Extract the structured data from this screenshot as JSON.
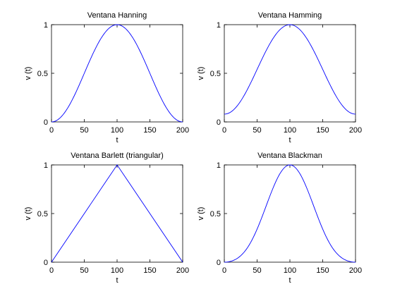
{
  "figure": {
    "background": "#ffffff",
    "line_color": "#0000ff"
  },
  "chart_data": [
    {
      "type": "line",
      "title": "Ventana Hanning",
      "xlabel": "t",
      "ylabel": "v (t)",
      "xlim": [
        0,
        200
      ],
      "ylim": [
        0,
        1
      ],
      "xticks": [
        0,
        50,
        100,
        150,
        200
      ],
      "yticks": [
        0,
        0.5,
        1
      ],
      "xtick_labels": [
        "0",
        "50",
        "100",
        "150",
        "200"
      ],
      "ytick_labels": [
        "0",
        "0.5",
        "1"
      ],
      "grid": false,
      "window": "hanning",
      "x": [
        0,
        10,
        20,
        30,
        40,
        50,
        60,
        70,
        80,
        90,
        100,
        110,
        120,
        130,
        140,
        150,
        160,
        170,
        180,
        190,
        200
      ],
      "y": [
        0,
        0.025,
        0.095,
        0.206,
        0.345,
        0.5,
        0.655,
        0.794,
        0.905,
        0.975,
        1,
        0.975,
        0.905,
        0.794,
        0.655,
        0.5,
        0.345,
        0.206,
        0.095,
        0.025,
        0
      ]
    },
    {
      "type": "line",
      "title": "Ventana Hamming",
      "xlabel": "t",
      "ylabel": "v (t)",
      "xlim": [
        0,
        200
      ],
      "ylim": [
        0,
        1
      ],
      "xticks": [
        0,
        50,
        100,
        150,
        200
      ],
      "yticks": [
        0,
        0.5,
        1
      ],
      "xtick_labels": [
        "0",
        "50",
        "100",
        "150",
        "200"
      ],
      "ytick_labels": [
        "0",
        "0.5",
        "1"
      ],
      "grid": false,
      "window": "hamming",
      "x": [
        0,
        10,
        20,
        30,
        40,
        50,
        60,
        70,
        80,
        90,
        100,
        110,
        120,
        130,
        140,
        150,
        160,
        170,
        180,
        190,
        200
      ],
      "y": [
        0.08,
        0.103,
        0.167,
        0.27,
        0.398,
        0.54,
        0.682,
        0.81,
        0.913,
        0.977,
        1,
        0.977,
        0.913,
        0.81,
        0.682,
        0.54,
        0.398,
        0.27,
        0.167,
        0.103,
        0.08
      ]
    },
    {
      "type": "line",
      "title": "Ventana Barlett (triangular)",
      "xlabel": "t",
      "ylabel": "v (t)",
      "xlim": [
        0,
        200
      ],
      "ylim": [
        0,
        1
      ],
      "xticks": [
        0,
        50,
        100,
        150,
        200
      ],
      "yticks": [
        0,
        0.5,
        1
      ],
      "xtick_labels": [
        "0",
        "50",
        "100",
        "150",
        "200"
      ],
      "ytick_labels": [
        "0",
        "0.5",
        "1"
      ],
      "grid": false,
      "window": "bartlett",
      "x": [
        0,
        100,
        200
      ],
      "y": [
        0,
        1,
        0
      ]
    },
    {
      "type": "line",
      "title": "Ventana Blackman",
      "xlabel": "t",
      "ylabel": "v (t)",
      "xlim": [
        0,
        200
      ],
      "ylim": [
        0,
        1
      ],
      "xticks": [
        0,
        50,
        100,
        150,
        200
      ],
      "yticks": [
        0,
        0.5,
        1
      ],
      "xtick_labels": [
        "0",
        "50",
        "100",
        "150",
        "200"
      ],
      "ytick_labels": [
        "0",
        "0.5",
        "1"
      ],
      "grid": false,
      "window": "blackman",
      "x": [
        0,
        10,
        20,
        30,
        40,
        50,
        60,
        70,
        80,
        90,
        100,
        110,
        120,
        130,
        140,
        150,
        160,
        170,
        180,
        190,
        200
      ],
      "y": [
        0,
        0.009,
        0.04,
        0.103,
        0.2,
        0.34,
        0.509,
        0.683,
        0.85,
        0.96,
        1,
        0.96,
        0.85,
        0.683,
        0.509,
        0.34,
        0.2,
        0.103,
        0.04,
        0.009,
        0
      ]
    }
  ]
}
